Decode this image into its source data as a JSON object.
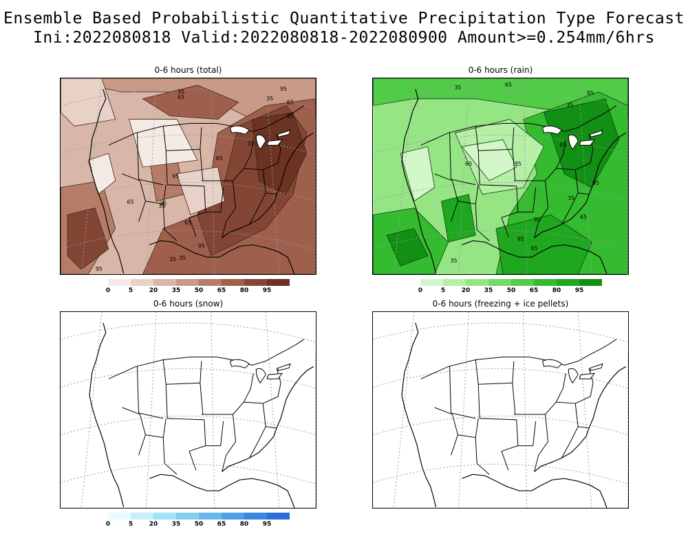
{
  "title": {
    "line1": "Ensemble Based Probabilistic Quantitative Precipitation Type Forecast",
    "line2": "Ini:2022080818 Valid:2022080818-2022080900 Amount>=0.254mm/6hrs"
  },
  "panels": [
    {
      "id": "total",
      "title": "0-6 hours (total)",
      "contour_labels": [
        "35",
        "65",
        "95",
        "35",
        "65",
        "95",
        "35",
        "65",
        "95",
        "35",
        "35",
        "65",
        "35",
        "95",
        "65",
        "35",
        "95"
      ]
    },
    {
      "id": "rain",
      "title": "0-6 hours (rain)",
      "contour_labels": [
        "35",
        "65",
        "95",
        "35",
        "65",
        "35",
        "65",
        "95",
        "65",
        "35",
        "65",
        "35",
        "95",
        "35"
      ]
    },
    {
      "id": "snow",
      "title": "0-6 hours (snow)",
      "contour_labels": []
    },
    {
      "id": "frz",
      "title": "0-6 hours (freezing + ice pellets)",
      "contour_labels": []
    }
  ],
  "legends": {
    "total": {
      "labels": [
        "0",
        "5",
        "20",
        "35",
        "50",
        "65",
        "80",
        "95"
      ],
      "colors": [
        "#f5ebe6",
        "#e8d2c8",
        "#d9b7a8",
        "#c99a88",
        "#b57c68",
        "#9e604c",
        "#844634",
        "#6b3322"
      ]
    },
    "rain": {
      "labels": [
        "0",
        "5",
        "20",
        "35",
        "50",
        "65",
        "80",
        "95"
      ],
      "colors": [
        "#d4f7c9",
        "#b6efa6",
        "#96e585",
        "#74d966",
        "#52cb48",
        "#35bb30",
        "#1fa720",
        "#119015"
      ]
    },
    "snow": {
      "labels": [
        "0",
        "5",
        "20",
        "35",
        "50",
        "65",
        "80",
        "95"
      ],
      "colors": [
        "#e8fbff",
        "#c6f0fb",
        "#a3e2f7",
        "#82cff2",
        "#66b8ee",
        "#4d9fe8",
        "#3a86e1",
        "#2b6fd9"
      ]
    }
  }
}
